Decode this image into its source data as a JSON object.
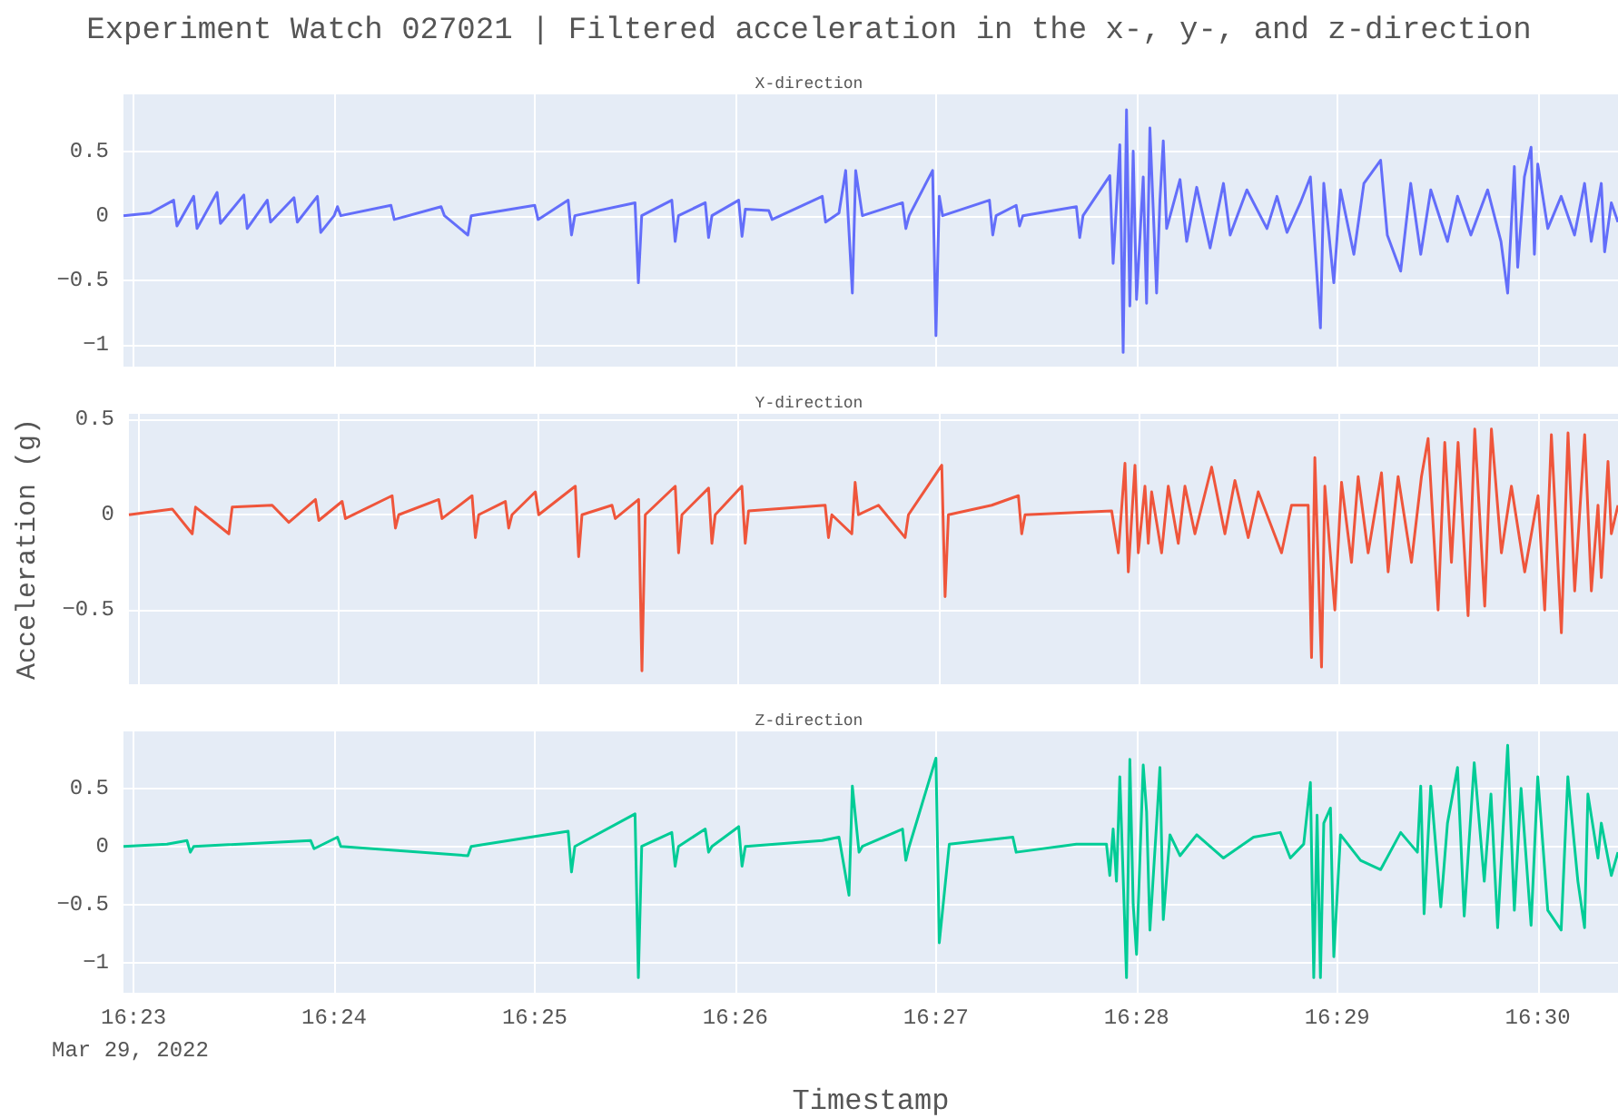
{
  "chart_data": [
    {
      "type": "line",
      "title": "Experiment Watch 027021 | Filtered acceleration in the x-, y-, and z-direction",
      "subtitle": "X-direction",
      "color": "#636efa",
      "grid": true,
      "tick_labels": "y",
      "xlim": [
        "2022-03-29T16:22:57",
        "2022-03-29T16:30:24"
      ],
      "ylim": [
        -1.17,
        0.94
      ],
      "yticks": [
        -1,
        -0.5,
        0,
        0.5
      ],
      "xticks": [
        {
          "value": "2022-03-29T16:23",
          "label": null
        },
        {
          "value": "2022-03-29T16:24",
          "label": null
        },
        {
          "value": "2022-03-29T16:25",
          "label": null
        },
        {
          "value": "2022-03-29T16:26",
          "label": null
        },
        {
          "value": "2022-03-29T16:27",
          "label": null
        },
        {
          "value": "2022-03-29T16:28",
          "label": null
        },
        {
          "value": "2022-03-29T16:29",
          "label": null
        },
        {
          "value": "2022-03-29T16:30",
          "label": null
        }
      ],
      "x": [
        "2022-03-29T16:22:57",
        "2022-03-29T16:23:05",
        "2022-03-29T16:23:12",
        "2022-03-29T16:23:13",
        "2022-03-29T16:23:18",
        "2022-03-29T16:23:19",
        "2022-03-29T16:23:25",
        "2022-03-29T16:23:26",
        "2022-03-29T16:23:33",
        "2022-03-29T16:23:34",
        "2022-03-29T16:23:40",
        "2022-03-29T16:23:41",
        "2022-03-29T16:23:48",
        "2022-03-29T16:23:49",
        "2022-03-29T16:23:55",
        "2022-03-29T16:23:56",
        "2022-03-29T16:24:00",
        "2022-03-29T16:24:01",
        "2022-03-29T16:24:02",
        "2022-03-29T16:24:17",
        "2022-03-29T16:24:18",
        "2022-03-29T16:24:32",
        "2022-03-29T16:24:33",
        "2022-03-29T16:24:40",
        "2022-03-29T16:24:41",
        "2022-03-29T16:25:00",
        "2022-03-29T16:25:01",
        "2022-03-29T16:25:10",
        "2022-03-29T16:25:11",
        "2022-03-29T16:25:12",
        "2022-03-29T16:25:30",
        "2022-03-29T16:25:31",
        "2022-03-29T16:25:32",
        "2022-03-29T16:25:41",
        "2022-03-29T16:25:42",
        "2022-03-29T16:25:43",
        "2022-03-29T16:25:51",
        "2022-03-29T16:25:52",
        "2022-03-29T16:25:53",
        "2022-03-29T16:26:01",
        "2022-03-29T16:26:02",
        "2022-03-29T16:26:03",
        "2022-03-29T16:26:10",
        "2022-03-29T16:26:11",
        "2022-03-29T16:26:26",
        "2022-03-29T16:26:27",
        "2022-03-29T16:26:31",
        "2022-03-29T16:26:33",
        "2022-03-29T16:26:35",
        "2022-03-29T16:26:36",
        "2022-03-29T16:26:38",
        "2022-03-29T16:26:50",
        "2022-03-29T16:26:51",
        "2022-03-29T16:26:52",
        "2022-03-29T16:26:59",
        "2022-03-29T16:27:00",
        "2022-03-29T16:27:01",
        "2022-03-29T16:27:02",
        "2022-03-29T16:27:16",
        "2022-03-29T16:27:17",
        "2022-03-29T16:27:18",
        "2022-03-29T16:27:24",
        "2022-03-29T16:27:25",
        "2022-03-29T16:27:26",
        "2022-03-29T16:27:42",
        "2022-03-29T16:27:43",
        "2022-03-29T16:27:44",
        "2022-03-29T16:27:52",
        "2022-03-29T16:27:53",
        "2022-03-29T16:27:55",
        "2022-03-29T16:27:56",
        "2022-03-29T16:27:57",
        "2022-03-29T16:27:58",
        "2022-03-29T16:27:59",
        "2022-03-29T16:28:00",
        "2022-03-29T16:28:02",
        "2022-03-29T16:28:03",
        "2022-03-29T16:28:04",
        "2022-03-29T16:28:06",
        "2022-03-29T16:28:07",
        "2022-03-29T16:28:08",
        "2022-03-29T16:28:09",
        "2022-03-29T16:28:13",
        "2022-03-29T16:28:15",
        "2022-03-29T16:28:18",
        "2022-03-29T16:28:22",
        "2022-03-29T16:28:26",
        "2022-03-29T16:28:28",
        "2022-03-29T16:28:33",
        "2022-03-29T16:28:39",
        "2022-03-29T16:28:42",
        "2022-03-29T16:28:45",
        "2022-03-29T16:28:49",
        "2022-03-29T16:28:52",
        "2022-03-29T16:28:55",
        "2022-03-29T16:28:56",
        "2022-03-29T16:28:59",
        "2022-03-29T16:29:01",
        "2022-03-29T16:29:05",
        "2022-03-29T16:29:08",
        "2022-03-29T16:29:13",
        "2022-03-29T16:29:15",
        "2022-03-29T16:29:19",
        "2022-03-29T16:29:22",
        "2022-03-29T16:29:25",
        "2022-03-29T16:29:28",
        "2022-03-29T16:29:33",
        "2022-03-29T16:29:36",
        "2022-03-29T16:29:40",
        "2022-03-29T16:29:45",
        "2022-03-29T16:29:49",
        "2022-03-29T16:29:51",
        "2022-03-29T16:29:53",
        "2022-03-29T16:29:54",
        "2022-03-29T16:29:56",
        "2022-03-29T16:29:58",
        "2022-03-29T16:29:59",
        "2022-03-29T16:30:00",
        "2022-03-29T16:30:03",
        "2022-03-29T16:30:07",
        "2022-03-29T16:30:11",
        "2022-03-29T16:30:14",
        "2022-03-29T16:30:16",
        "2022-03-29T16:30:19",
        "2022-03-29T16:30:20",
        "2022-03-29T16:30:22",
        "2022-03-29T16:30:24"
      ],
      "values": [
        0,
        0.02,
        0.12,
        -0.08,
        0.15,
        -0.1,
        0.18,
        -0.06,
        0.16,
        -0.1,
        0.12,
        -0.05,
        0.14,
        -0.05,
        0.15,
        -0.13,
        0,
        0.07,
        0,
        0.08,
        -0.03,
        0.07,
        0,
        -0.15,
        0,
        0.08,
        -0.03,
        0.12,
        -0.15,
        0,
        0.1,
        -0.52,
        0,
        0.12,
        -0.2,
        0,
        0.1,
        -0.17,
        0,
        0.12,
        -0.16,
        0.05,
        0.04,
        -0.03,
        0.15,
        -0.05,
        0.02,
        0.35,
        -0.6,
        0.35,
        0,
        0.1,
        -0.1,
        0,
        0.35,
        -0.93,
        0.15,
        0,
        0.12,
        -0.15,
        0,
        0.08,
        -0.08,
        0,
        0.07,
        -0.17,
        0,
        0.31,
        -0.37,
        0.55,
        -1.06,
        0.82,
        -0.7,
        0.5,
        -0.65,
        0.3,
        -0.68,
        0.68,
        -0.6,
        0.12,
        0.58,
        -0.1,
        0.28,
        -0.2,
        0.22,
        -0.25,
        0.25,
        -0.15,
        0.2,
        -0.1,
        0.15,
        -0.13,
        0.1,
        0.3,
        -0.87,
        0.25,
        -0.52,
        0.2,
        -0.3,
        0.25,
        0.43,
        -0.15,
        -0.43,
        0.25,
        -0.3,
        0.2,
        -0.2,
        0.15,
        -0.15,
        0.2,
        -0.2,
        -0.6,
        0.38,
        -0.4,
        0.3,
        0.53,
        -0.3,
        0.4,
        -0.1,
        0.15,
        -0.15,
        0.25,
        -0.2,
        0.25,
        -0.28,
        0.1,
        -0.05
      ]
    },
    {
      "type": "line",
      "subtitle": "Y-direction",
      "ylabel": "Acceleration (g)",
      "color": "#ef553b",
      "grid": true,
      "tick_labels": "y",
      "xlim": [
        "2022-03-29T16:22:57",
        "2022-03-29T16:30:24"
      ],
      "ylim": [
        -0.89,
        0.53
      ],
      "yticks": [
        -0.5,
        0,
        0.5
      ],
      "xticks": [
        {
          "value": "2022-03-29T16:23",
          "label": null
        },
        {
          "value": "2022-03-29T16:24",
          "label": null
        },
        {
          "value": "2022-03-29T16:25",
          "label": null
        },
        {
          "value": "2022-03-29T16:26",
          "label": null
        },
        {
          "value": "2022-03-29T16:27",
          "label": null
        },
        {
          "value": "2022-03-29T16:28",
          "label": null
        },
        {
          "value": "2022-03-29T16:29",
          "label": null
        },
        {
          "value": "2022-03-29T16:30",
          "label": null
        }
      ],
      "x": [
        "2022-03-29T16:22:57",
        "2022-03-29T16:23:10",
        "2022-03-29T16:23:16",
        "2022-03-29T16:23:17",
        "2022-03-29T16:23:22",
        "2022-03-29T16:23:27",
        "2022-03-29T16:23:28",
        "2022-03-29T16:23:40",
        "2022-03-29T16:23:45",
        "2022-03-29T16:23:53",
        "2022-03-29T16:23:54",
        "2022-03-29T16:24:01",
        "2022-03-29T16:24:02",
        "2022-03-29T16:24:16",
        "2022-03-29T16:24:17",
        "2022-03-29T16:24:18",
        "2022-03-29T16:24:30",
        "2022-03-29T16:24:31",
        "2022-03-29T16:24:40",
        "2022-03-29T16:24:41",
        "2022-03-29T16:24:42",
        "2022-03-29T16:24:50",
        "2022-03-29T16:24:51",
        "2022-03-29T16:24:52",
        "2022-03-29T16:24:59",
        "2022-03-29T16:25:00",
        "2022-03-29T16:25:11",
        "2022-03-29T16:25:12",
        "2022-03-29T16:25:13",
        "2022-03-29T16:25:22",
        "2022-03-29T16:25:23",
        "2022-03-29T16:25:30",
        "2022-03-29T16:25:31",
        "2022-03-29T16:25:32",
        "2022-03-29T16:25:41",
        "2022-03-29T16:25:42",
        "2022-03-29T16:25:43",
        "2022-03-29T16:25:51",
        "2022-03-29T16:25:52",
        "2022-03-29T16:25:53",
        "2022-03-29T16:26:01",
        "2022-03-29T16:26:02",
        "2022-03-29T16:26:03",
        "2022-03-29T16:26:26",
        "2022-03-29T16:26:27",
        "2022-03-29T16:26:28",
        "2022-03-29T16:26:34",
        "2022-03-29T16:26:35",
        "2022-03-29T16:26:36",
        "2022-03-29T16:26:42",
        "2022-03-29T16:26:50",
        "2022-03-29T16:26:51",
        "2022-03-29T16:27:01",
        "2022-03-29T16:27:02",
        "2022-03-29T16:27:03",
        "2022-03-29T16:27:16",
        "2022-03-29T16:27:24",
        "2022-03-29T16:27:25",
        "2022-03-29T16:27:26",
        "2022-03-29T16:27:52",
        "2022-03-29T16:27:54",
        "2022-03-29T16:27:56",
        "2022-03-29T16:27:57",
        "2022-03-29T16:27:59",
        "2022-03-29T16:28:00",
        "2022-03-29T16:28:02",
        "2022-03-29T16:28:03",
        "2022-03-29T16:28:04",
        "2022-03-29T16:28:07",
        "2022-03-29T16:28:09",
        "2022-03-29T16:28:12",
        "2022-03-29T16:28:14",
        "2022-03-29T16:28:17",
        "2022-03-29T16:28:22",
        "2022-03-29T16:28:26",
        "2022-03-29T16:28:29",
        "2022-03-29T16:28:33",
        "2022-03-29T16:28:36",
        "2022-03-29T16:28:43",
        "2022-03-29T16:28:46",
        "2022-03-29T16:28:51",
        "2022-03-29T16:28:52",
        "2022-03-29T16:28:53",
        "2022-03-29T16:28:55",
        "2022-03-29T16:28:56",
        "2022-03-29T16:28:59",
        "2022-03-29T16:29:01",
        "2022-03-29T16:29:04",
        "2022-03-29T16:29:06",
        "2022-03-29T16:29:09",
        "2022-03-29T16:29:13",
        "2022-03-29T16:29:15",
        "2022-03-29T16:29:18",
        "2022-03-29T16:29:22",
        "2022-03-29T16:29:25",
        "2022-03-29T16:29:27",
        "2022-03-29T16:29:30",
        "2022-03-29T16:29:32",
        "2022-03-29T16:29:34",
        "2022-03-29T16:29:36",
        "2022-03-29T16:29:39",
        "2022-03-29T16:29:41",
        "2022-03-29T16:29:44",
        "2022-03-29T16:29:46",
        "2022-03-29T16:29:49",
        "2022-03-29T16:29:52",
        "2022-03-29T16:29:56",
        "2022-03-29T16:30:00",
        "2022-03-29T16:30:02",
        "2022-03-29T16:30:04",
        "2022-03-29T16:30:07",
        "2022-03-29T16:30:09",
        "2022-03-29T16:30:11",
        "2022-03-29T16:30:14",
        "2022-03-29T16:30:16",
        "2022-03-29T16:30:18",
        "2022-03-29T16:30:19",
        "2022-03-29T16:30:21",
        "2022-03-29T16:30:22",
        "2022-03-29T16:30:24"
      ],
      "values": [
        0,
        0.03,
        -0.1,
        0.04,
        -0.03,
        -0.1,
        0.04,
        0.05,
        -0.04,
        0.08,
        -0.03,
        0.07,
        -0.02,
        0.1,
        -0.07,
        0,
        0.08,
        -0.02,
        0.1,
        -0.12,
        0,
        0.07,
        -0.07,
        0,
        0.12,
        0,
        0.15,
        -0.22,
        0,
        0.05,
        -0.02,
        0.08,
        -0.82,
        0,
        0.15,
        -0.2,
        0,
        0.14,
        -0.15,
        0,
        0.15,
        -0.15,
        0.02,
        0.05,
        -0.12,
        0,
        -0.1,
        0.17,
        0,
        0.05,
        -0.12,
        0,
        0.26,
        -0.43,
        0,
        0.05,
        0.1,
        -0.1,
        0,
        0.02,
        -0.2,
        0.27,
        -0.3,
        0.26,
        -0.2,
        0.15,
        -0.15,
        0.12,
        -0.2,
        0.15,
        -0.15,
        0.15,
        -0.1,
        0.25,
        -0.1,
        0.18,
        -0.12,
        0.12,
        -0.2,
        0.05,
        0.05,
        -0.75,
        0.3,
        -0.8,
        0.15,
        -0.5,
        0.17,
        -0.25,
        0.2,
        -0.2,
        0.22,
        -0.3,
        0.2,
        -0.25,
        0.2,
        0.4,
        -0.5,
        0.38,
        -0.25,
        0.38,
        -0.53,
        0.45,
        -0.48,
        0.45,
        -0.2,
        0.15,
        -0.3,
        0.1,
        -0.5,
        0.42,
        -0.62,
        0.43,
        -0.4,
        0.42,
        -0.4,
        0.05,
        -0.33,
        0.28,
        -0.1,
        0.05
      ]
    },
    {
      "type": "line",
      "subtitle": "Z-direction",
      "xlabel": "Timestamp",
      "annotations": [
        "Mar 29, 2022"
      ],
      "color": "#00cc96",
      "grid": true,
      "xlim": [
        "2022-03-29T16:22:57",
        "2022-03-29T16:30:24"
      ],
      "ylim": [
        -1.26,
        0.99
      ],
      "yticks": [
        -1,
        -0.5,
        0,
        0.5
      ],
      "xticks": [
        {
          "value": "2022-03-29T16:23",
          "label": "16:23"
        },
        {
          "value": "2022-03-29T16:24",
          "label": "16:24"
        },
        {
          "value": "2022-03-29T16:25",
          "label": "16:25"
        },
        {
          "value": "2022-03-29T16:26",
          "label": "16:26"
        },
        {
          "value": "2022-03-29T16:27",
          "label": "16:27"
        },
        {
          "value": "2022-03-29T16:28",
          "label": "16:28"
        },
        {
          "value": "2022-03-29T16:29",
          "label": "16:29"
        },
        {
          "value": "2022-03-29T16:30",
          "label": "16:30"
        }
      ],
      "x": [
        "2022-03-29T16:22:57",
        "2022-03-29T16:23:10",
        "2022-03-29T16:23:16",
        "2022-03-29T16:23:17",
        "2022-03-29T16:23:18",
        "2022-03-29T16:23:53",
        "2022-03-29T16:23:54",
        "2022-03-29T16:24:01",
        "2022-03-29T16:24:02",
        "2022-03-29T16:24:40",
        "2022-03-29T16:24:41",
        "2022-03-29T16:25:10",
        "2022-03-29T16:25:11",
        "2022-03-29T16:25:12",
        "2022-03-29T16:25:30",
        "2022-03-29T16:25:31",
        "2022-03-29T16:25:32",
        "2022-03-29T16:25:41",
        "2022-03-29T16:25:42",
        "2022-03-29T16:25:43",
        "2022-03-29T16:25:51",
        "2022-03-29T16:25:52",
        "2022-03-29T16:25:53",
        "2022-03-29T16:26:01",
        "2022-03-29T16:26:02",
        "2022-03-29T16:26:03",
        "2022-03-29T16:26:26",
        "2022-03-29T16:26:31",
        "2022-03-29T16:26:34",
        "2022-03-29T16:26:35",
        "2022-03-29T16:26:37",
        "2022-03-29T16:26:38",
        "2022-03-29T16:26:50",
        "2022-03-29T16:26:51",
        "2022-03-29T16:26:52",
        "2022-03-29T16:27:00",
        "2022-03-29T16:27:01",
        "2022-03-29T16:27:04",
        "2022-03-29T16:27:23",
        "2022-03-29T16:27:24",
        "2022-03-29T16:27:42",
        "2022-03-29T16:27:51",
        "2022-03-29T16:27:52",
        "2022-03-29T16:27:53",
        "2022-03-29T16:27:54",
        "2022-03-29T16:27:55",
        "2022-03-29T16:27:57",
        "2022-03-29T16:27:58",
        "2022-03-29T16:27:59",
        "2022-03-29T16:28:00",
        "2022-03-29T16:28:02",
        "2022-03-29T16:28:03",
        "2022-03-29T16:28:04",
        "2022-03-29T16:28:06",
        "2022-03-29T16:28:07",
        "2022-03-29T16:28:08",
        "2022-03-29T16:28:10",
        "2022-03-29T16:28:13",
        "2022-03-29T16:28:18",
        "2022-03-29T16:28:26",
        "2022-03-29T16:28:35",
        "2022-03-29T16:28:43",
        "2022-03-29T16:28:46",
        "2022-03-29T16:28:50",
        "2022-03-29T16:28:52",
        "2022-03-29T16:28:53",
        "2022-03-29T16:28:54",
        "2022-03-29T16:28:55",
        "2022-03-29T16:28:56",
        "2022-03-29T16:28:58",
        "2022-03-29T16:28:59",
        "2022-03-29T16:29:01",
        "2022-03-29T16:29:07",
        "2022-03-29T16:29:13",
        "2022-03-29T16:29:19",
        "2022-03-29T16:29:24",
        "2022-03-29T16:29:25",
        "2022-03-29T16:29:26",
        "2022-03-29T16:29:28",
        "2022-03-29T16:29:31",
        "2022-03-29T16:29:33",
        "2022-03-29T16:29:36",
        "2022-03-29T16:29:38",
        "2022-03-29T16:29:41",
        "2022-03-29T16:29:44",
        "2022-03-29T16:29:46",
        "2022-03-29T16:29:48",
        "2022-03-29T16:29:51",
        "2022-03-29T16:29:53",
        "2022-03-29T16:29:55",
        "2022-03-29T16:29:58",
        "2022-03-29T16:30:00",
        "2022-03-29T16:30:03",
        "2022-03-29T16:30:07",
        "2022-03-29T16:30:09",
        "2022-03-29T16:30:12",
        "2022-03-29T16:30:14",
        "2022-03-29T16:30:15",
        "2022-03-29T16:30:18",
        "2022-03-29T16:30:19",
        "2022-03-29T16:30:22",
        "2022-03-29T16:30:24"
      ],
      "values": [
        0,
        0.02,
        0.05,
        -0.05,
        0,
        0.05,
        -0.02,
        0.08,
        0,
        -0.08,
        0,
        0.13,
        -0.22,
        0,
        0.28,
        -1.13,
        0,
        0.12,
        -0.17,
        0,
        0.15,
        -0.05,
        0,
        0.17,
        -0.17,
        0,
        0.05,
        0.08,
        -0.42,
        0.52,
        -0.05,
        0,
        0.15,
        -0.12,
        0,
        0.76,
        -0.83,
        0.02,
        0.08,
        -0.05,
        0.02,
        0.02,
        -0.25,
        0.15,
        -0.3,
        0.6,
        -1.13,
        0.75,
        -0.5,
        -0.93,
        0.7,
        0.3,
        -0.72,
        0.2,
        0.68,
        -0.63,
        0.1,
        -0.08,
        0.1,
        -0.1,
        0.08,
        0.12,
        -0.1,
        0.02,
        0.55,
        -1.13,
        0.27,
        -1.13,
        0.2,
        0.33,
        -0.95,
        0.1,
        -0.12,
        -0.2,
        0.12,
        -0.05,
        0.52,
        -0.58,
        0.52,
        -0.52,
        0.2,
        0.68,
        -0.6,
        0.72,
        -0.3,
        0.45,
        -0.7,
        0.87,
        -0.55,
        0.5,
        -0.68,
        0.6,
        -0.55,
        -0.72,
        0.6,
        -0.3,
        -0.7,
        0.45,
        -0.1,
        0.2,
        -0.25,
        -0.05
      ]
    }
  ]
}
